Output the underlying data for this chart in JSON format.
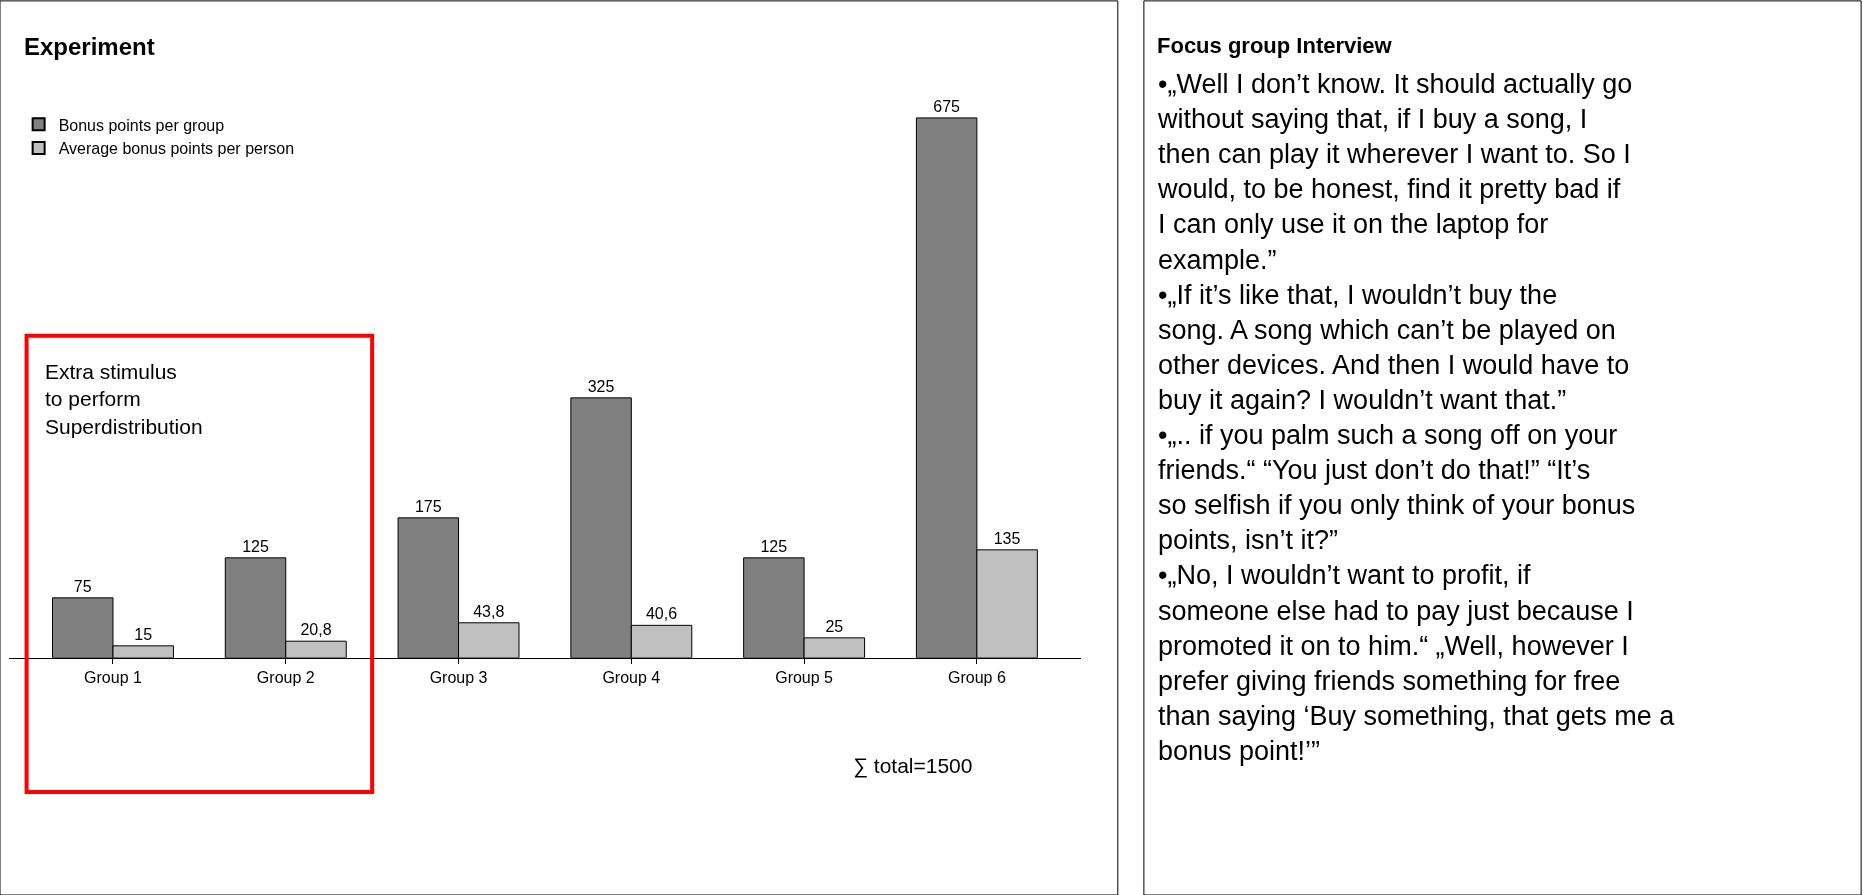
{
  "chart_data": [
    {
      "type": "bar",
      "title": "Experiment",
      "categories": [
        "Group 1",
        "Group 2",
        "Group 3",
        "Group 4",
        "Group 5",
        "Group 6"
      ],
      "series": [
        {
          "name": "Bonus points per group",
          "color": "#808080",
          "values": [
            75,
            125,
            175,
            325,
            125,
            675
          ],
          "value_labels": [
            "75",
            "125",
            "175",
            "325",
            "125",
            "675"
          ]
        },
        {
          "name": "Average bonus points per person",
          "color": "#c0c0c0",
          "values": [
            15,
            20.8,
            43.8,
            40.6,
            25,
            135
          ],
          "value_labels": [
            "15",
            "20,8",
            "43,8",
            "40,6",
            "25",
            "135"
          ]
        }
      ],
      "legend": "top left",
      "annotations": [
        "Extra stimulus\nto perform\nSuperdistribution",
        "∑ total=1500"
      ]
    },
    {
      "type": "other",
      "title": "Focus group Interview",
      "annotations": [
        "•„Well I don’t know. It should actually go without saying that, if I buy a song, I then can play it wherever I want to. So I would, to be honest, find it pretty bad if I can only use it on the laptop for example.”",
        "•„If it’s like that, I wouldn’t buy the song. A song which can’t be played on other devices. And then I would have to buy it again? I wouldn’t want that.”",
        "•„.. if you palm such a song off on your friends.“ “You just don’t do that!” “It’s so selfish if you only think of your bonus points, isn’t it?”",
        "•„No, I wouldn’t want to profit, if someone else had to pay just because I promoted it on to him.“ „Well, however I prefer giving friends something for free than saying ‘Buy something, that gets me a bonus point!’”"
      ]
    }
  ]
}
